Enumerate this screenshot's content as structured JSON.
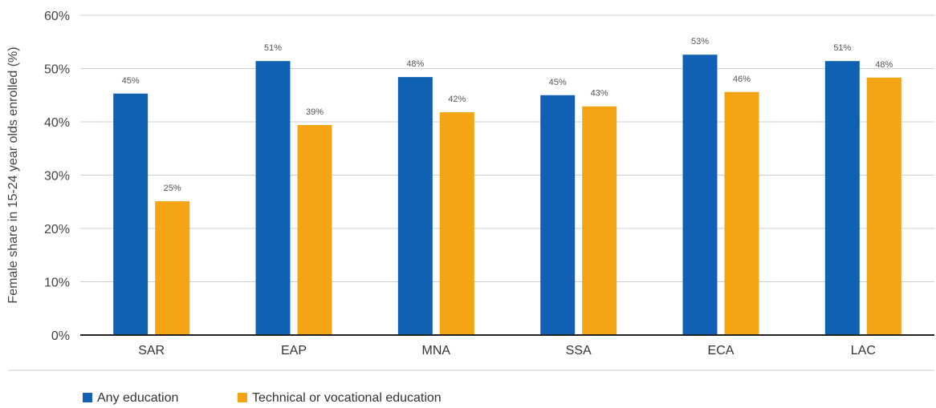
{
  "chart_data": {
    "type": "bar",
    "title": "",
    "xlabel": "",
    "ylabel": "Female share in 15-24 year olds enrolled (%)",
    "ylim": [
      0,
      60
    ],
    "y_ticks": [
      "0%",
      "10%",
      "20%",
      "30%",
      "40%",
      "50%",
      "60%"
    ],
    "y_tick_values": [
      0,
      10,
      20,
      30,
      40,
      50,
      60
    ],
    "grid": true,
    "legend_position": "bottom-left",
    "categories": [
      "SAR",
      "EAP",
      "MNA",
      "SSA",
      "ECA",
      "LAC"
    ],
    "series": [
      {
        "name": "Any education",
        "color": "#1060B4",
        "values": [
          45.3,
          51.4,
          48.4,
          45.0,
          52.6,
          51.4
        ],
        "labels": [
          "45%",
          "51%",
          "48%",
          "45%",
          "53%",
          "51%"
        ]
      },
      {
        "name": "Technical or vocational education",
        "color": "#F5A514",
        "values": [
          25.1,
          39.4,
          41.8,
          42.9,
          45.6,
          48.3
        ],
        "labels": [
          "25%",
          "39%",
          "42%",
          "43%",
          "46%",
          "48%"
        ]
      }
    ]
  }
}
